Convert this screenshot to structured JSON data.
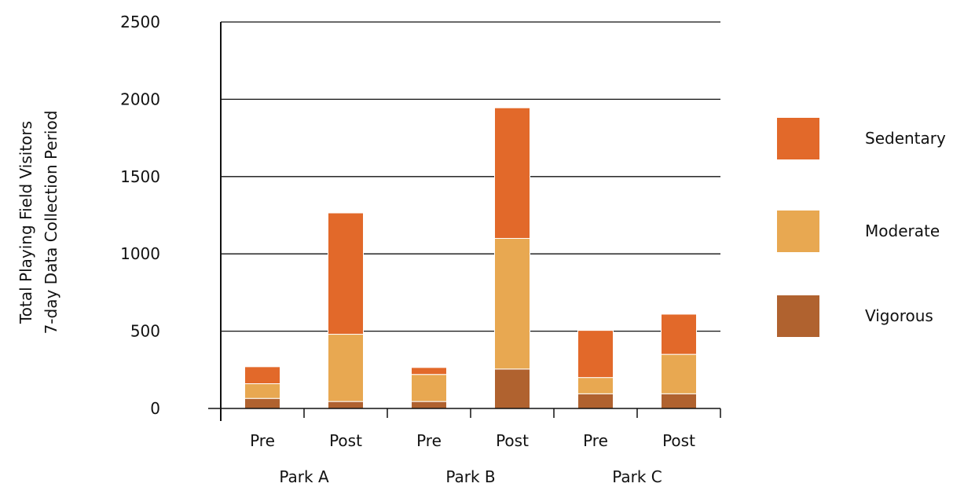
{
  "chart_data": {
    "type": "bar",
    "stacked": true,
    "title": "",
    "xlabel": "",
    "ylabel": [
      "Total Playing Field Visitors",
      "7-day Data Collection Period"
    ],
    "ylim": [
      0,
      2500
    ],
    "yticks": [
      "0",
      "500",
      "1000",
      "1500",
      "2000",
      "2500"
    ],
    "grid": "horizontal",
    "legend_position": "right",
    "categories": [
      "Pre",
      "Post",
      "Pre",
      "Post",
      "Pre",
      "Post"
    ],
    "groups": [
      {
        "label": "Park A",
        "span": [
          0,
          1
        ]
      },
      {
        "label": "Park B",
        "span": [
          2,
          3
        ]
      },
      {
        "label": "Park C",
        "span": [
          4,
          5
        ]
      }
    ],
    "series": [
      {
        "name": "Vigorous",
        "color": "#b0622f",
        "values": [
          65,
          45,
          45,
          255,
          95,
          95
        ]
      },
      {
        "name": "Moderate",
        "color": "#e8a851",
        "values": [
          95,
          435,
          175,
          845,
          105,
          255
        ]
      },
      {
        "name": "Sedentary",
        "color": "#e2692a",
        "values": [
          110,
          785,
          45,
          845,
          305,
          260
        ]
      }
    ],
    "legend_order": [
      "Sedentary",
      "Moderate",
      "Vigorous"
    ]
  }
}
